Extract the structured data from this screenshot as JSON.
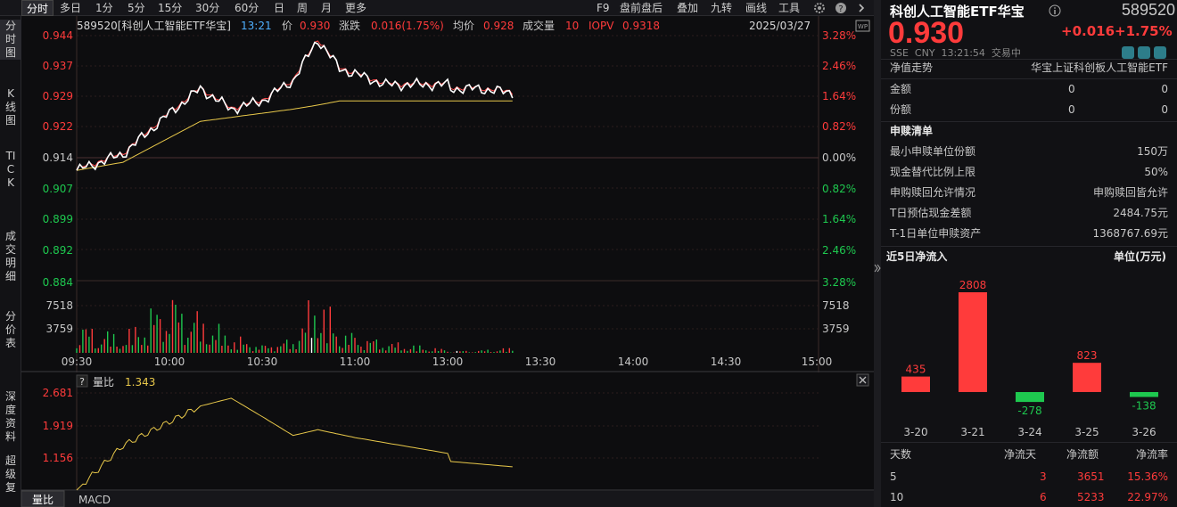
{
  "tabs": [
    "分时",
    "多日",
    "1分",
    "5分",
    "15分",
    "30分",
    "60分",
    "日",
    "周",
    "月",
    "更多"
  ],
  "toolbar": {
    "f9": "F9",
    "premarket": "盘前盘后",
    "overlay": "叠加",
    "nine_turn": "九转",
    "draw": "画线",
    "tools": "工具"
  },
  "sidebar": [
    "分时图",
    "K线图",
    "TICK",
    "成交明细",
    "分价表",
    "深度资料",
    "超级复"
  ],
  "info_bar": {
    "code_name": "589520[科创人工智能ETF华宝]",
    "time": "13:21",
    "price_label": "价",
    "price": "0.930",
    "change_label": "涨跌",
    "change": "0.016(1.75%)",
    "avg_label": "均价",
    "avg": "0.928",
    "volume_label": "成交量",
    "volume": "10",
    "iopv_label": "IOPV",
    "iopv": "0.9318",
    "date": "2025/03/27"
  },
  "price_axis": {
    "left": [
      "0.944",
      "0.937",
      "0.929",
      "0.922",
      "0.914",
      "0.907",
      "0.899",
      "0.892",
      "0.884"
    ],
    "right": [
      "3.28%",
      "2.46%",
      "1.64%",
      "0.82%",
      "0.00%",
      "0.82%",
      "1.64%",
      "2.46%",
      "3.28%"
    ]
  },
  "volume_axis": {
    "left": [
      "7518",
      "3759"
    ],
    "right": [
      "7518",
      "3759"
    ]
  },
  "time_axis": [
    "09:30",
    "10:00",
    "10:30",
    "11:00",
    "13:00",
    "13:30",
    "14:00",
    "14:30",
    "15:00"
  ],
  "sub_chart": {
    "help": "?",
    "label": "量比",
    "value": "1.343",
    "axis": [
      "2.681",
      "1.919",
      "1.156"
    ]
  },
  "bottom_tabs": [
    "量比",
    "MACD"
  ],
  "colors": {
    "up": "#ff3b3b",
    "down": "#1ec84f",
    "price_line": "#ffffff",
    "avg_line": "#e8c84a",
    "volume_ratio": "#e8c84a"
  },
  "chart_data": [
    {
      "type": "line",
      "title": "589520[科创人工智能ETF华宝]",
      "x": [
        "09:30",
        "09:45",
        "10:00",
        "10:10",
        "10:20",
        "10:30",
        "10:40",
        "10:48",
        "10:55",
        "11:10",
        "11:30",
        "13:00",
        "13:10",
        "13:21"
      ],
      "series": [
        {
          "name": "价",
          "values": [
            0.911,
            0.915,
            0.925,
            0.931,
            0.926,
            0.928,
            0.933,
            0.943,
            0.936,
            0.932,
            0.932,
            0.931,
            0.931,
            0.93
          ]
        },
        {
          "name": "均价",
          "values": [
            0.911,
            0.913,
            0.919,
            0.923,
            0.924,
            0.925,
            0.926,
            0.927,
            0.928,
            0.928,
            0.928,
            0.928,
            0.928,
            0.928
          ]
        }
      ],
      "ylim": [
        0.884,
        0.944
      ]
    },
    {
      "type": "bar",
      "x": [
        "09:30",
        "09:45",
        "10:00",
        "10:10",
        "10:20",
        "10:30",
        "10:40",
        "10:48",
        "10:55",
        "11:10",
        "11:30",
        "13:00",
        "13:10",
        "13:21"
      ],
      "series": [
        {
          "name": "成交量",
          "values": [
            4800,
            2600,
            9400,
            5900,
            2800,
            1200,
            2200,
            10400,
            3600,
            1800,
            500,
            300,
            400,
            800
          ]
        }
      ],
      "ylim": [
        0,
        11277
      ]
    },
    {
      "type": "line",
      "title": "量比",
      "x": [
        "09:30",
        "09:45",
        "10:00",
        "10:10",
        "10:20",
        "10:30",
        "10:40",
        "10:48",
        "11:00",
        "11:30",
        "13:00",
        "13:21"
      ],
      "series": [
        {
          "name": "量比",
          "values": [
            0.9,
            1.75,
            2.2,
            2.5,
            2.65,
            2.3,
            1.94,
            2.05,
            1.9,
            1.6,
            1.45,
            1.343
          ]
        }
      ],
      "ylim": [
        0.9,
        2.75
      ]
    }
  ],
  "panel": {
    "title": "科创人工智能ETF华宝",
    "code": "589520",
    "price": "0.930",
    "change": "+0.016",
    "change_pct": "+1.75%",
    "meta": "SSE  CNY  13:21:54  交易中",
    "nav_trend_label": "净值走势",
    "index_name": "华宝上证科创板人工智能ETF",
    "amount_label": "金额",
    "amount_v1": "0",
    "amount_v2": "0",
    "share_label": "份额",
    "share_v1": "0",
    "share_v2": "0",
    "list_title": "申赎清单",
    "rows": [
      {
        "label": "最小申赎单位份额",
        "value": "150万"
      },
      {
        "label": "现金替代比例上限",
        "value": "50%"
      },
      {
        "label": "申购赎回允许情况",
        "value": "申购赎回皆允许"
      },
      {
        "label": "T日预估现金差额",
        "value": "2484.75元"
      },
      {
        "label": "T-1日单位申赎资产",
        "value": "1368767.69元"
      }
    ],
    "flow_title": "近5日净流入",
    "flow_unit": "单位(万元)",
    "flow_chart": {
      "type": "bar",
      "categories": [
        "3-20",
        "3-21",
        "3-24",
        "3-25",
        "3-26"
      ],
      "values": [
        435,
        2808,
        -278,
        823,
        -138
      ]
    },
    "table_headers": [
      "天数",
      "净流天",
      "净流额",
      "净流率"
    ],
    "table_rows": [
      [
        "5",
        "3",
        "3651",
        "15.36%"
      ],
      [
        "10",
        "6",
        "5233",
        "22.97%"
      ]
    ]
  }
}
